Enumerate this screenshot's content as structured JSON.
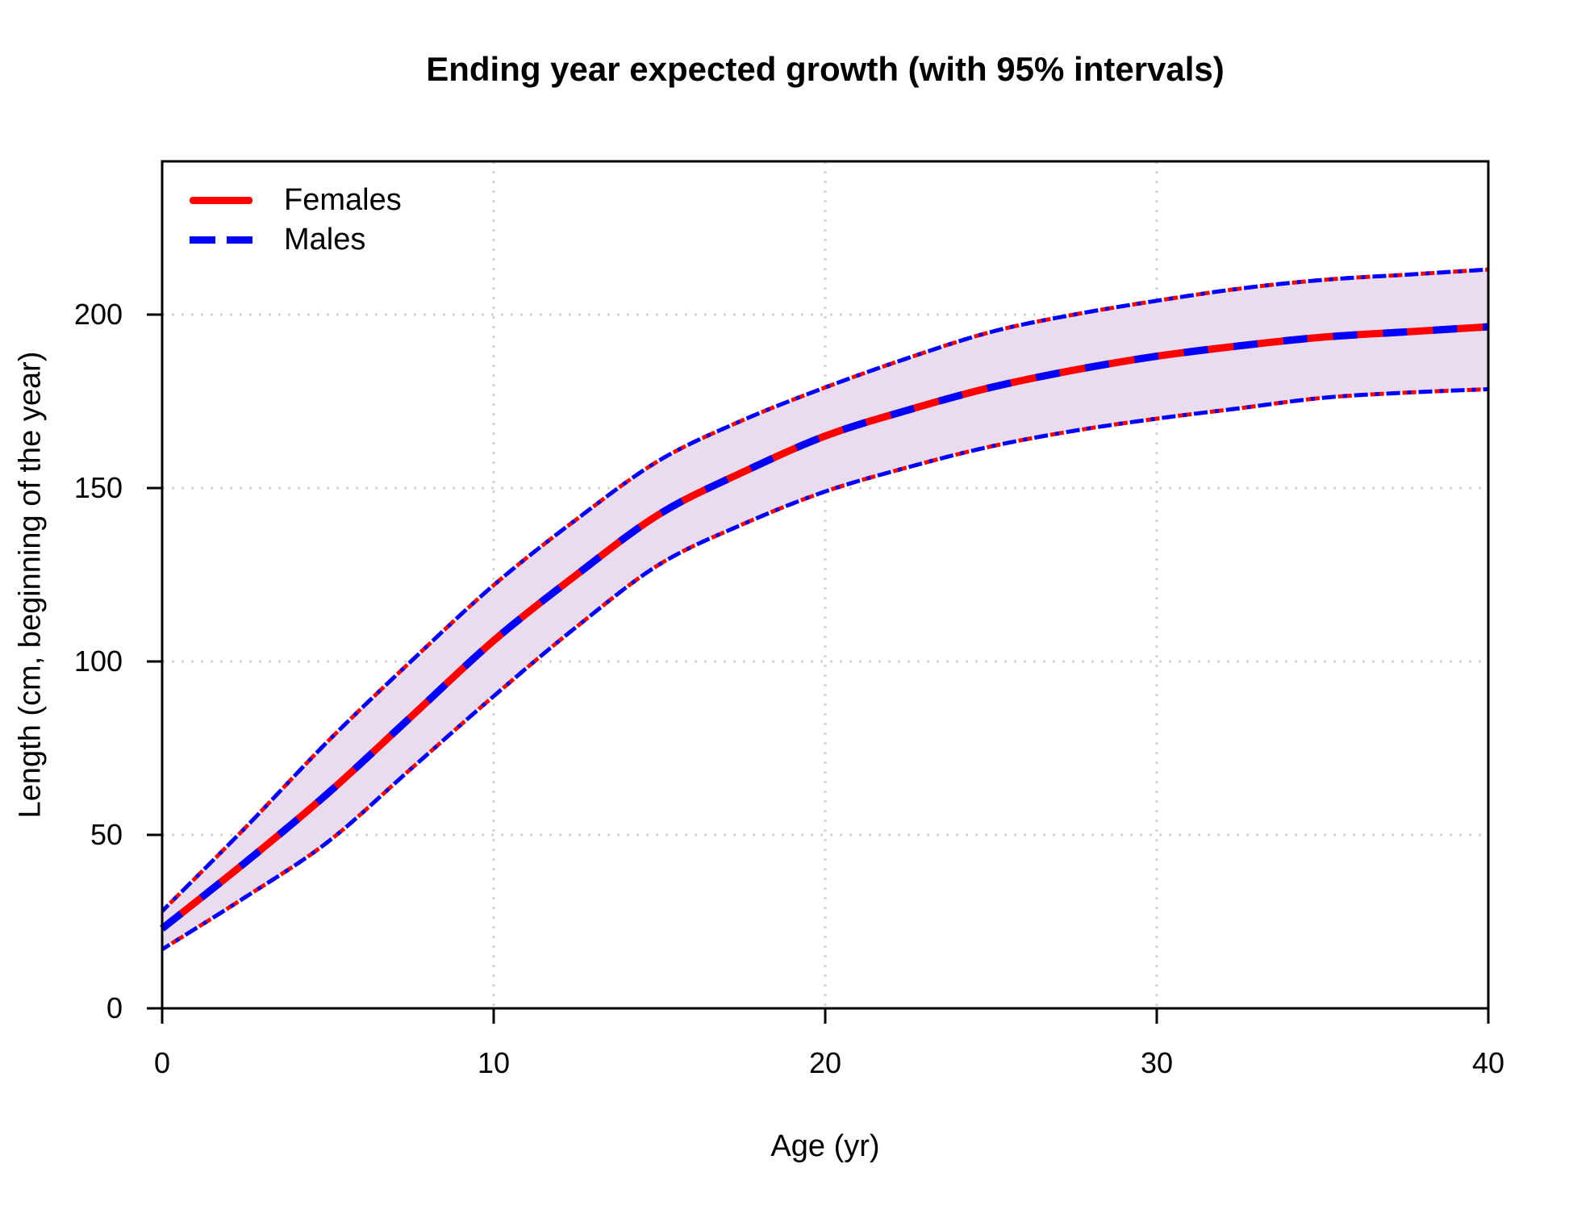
{
  "chart_data": {
    "type": "line",
    "title": "Ending year expected growth (with 95% intervals)",
    "xlabel": "Age (yr)",
    "ylabel": "Length (cm, beginning of the year)",
    "xlim": [
      0,
      40
    ],
    "ylim": [
      0,
      244
    ],
    "x_ticks": [
      0,
      10,
      20,
      30,
      40
    ],
    "y_ticks": [
      0,
      50,
      100,
      150,
      200
    ],
    "grid": "dotted light-gray gridlines at every axis tick",
    "legend_position": "top-left-inside",
    "x": [
      0,
      2.5,
      5,
      7.5,
      10,
      12.5,
      15,
      17.5,
      20,
      22.5,
      25,
      27.5,
      30,
      32.5,
      35,
      37.5,
      40
    ],
    "series": [
      {
        "name": "Females",
        "color": "#ff0000",
        "line_style": "solid",
        "mean": [
          23,
          42,
          62,
          84,
          106,
          125,
          142.5,
          154.5,
          165,
          172.5,
          179,
          184,
          188,
          191,
          193.5,
          195,
          196.5
        ],
        "lower_95": [
          17,
          32,
          48,
          69,
          90,
          110,
          128,
          139.5,
          149,
          156,
          162,
          166.5,
          170,
          173,
          176,
          177.5,
          178.5
        ],
        "upper_95": [
          28,
          52,
          77,
          100,
          122,
          141,
          158,
          169.5,
          179,
          187.5,
          195,
          200,
          204,
          207.5,
          210,
          211.5,
          213
        ]
      },
      {
        "name": "Males",
        "color": "#0000ff",
        "line_style": "dashed",
        "mean": [
          23,
          42,
          62,
          84,
          106,
          125,
          142.5,
          154.5,
          165,
          172.5,
          179,
          184,
          188,
          191,
          193.5,
          195,
          196.5
        ],
        "lower_95": [
          17,
          32,
          48,
          69,
          90,
          110,
          128,
          139.5,
          149,
          156,
          162,
          166.5,
          170,
          173,
          176,
          177.5,
          178.5
        ],
        "upper_95": [
          28,
          52,
          77,
          100,
          122,
          141,
          158,
          169.5,
          179,
          187.5,
          195,
          200,
          204,
          207.5,
          210,
          211.5,
          213
        ]
      }
    ],
    "band_fill_color": "#e8dcee",
    "grid_color": "#d2d2d2",
    "axis_color": "#000000",
    "band_border_style": "dot-dash, alternating red and blue",
    "mean_line_style": "solid red overlaid by dashed blue"
  }
}
